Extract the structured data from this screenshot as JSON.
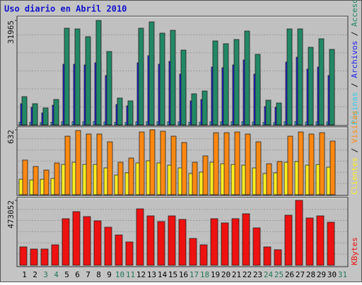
{
  "chart_data": [
    {
      "type": "bar",
      "title": "Uso diario en Abril 2010",
      "categories": [
        "1",
        "2",
        "3",
        "4",
        "5",
        "6",
        "7",
        "8",
        "9",
        "10",
        "11",
        "12",
        "13",
        "14",
        "15",
        "16",
        "17",
        "18",
        "19",
        "20",
        "21",
        "22",
        "23",
        "24",
        "25",
        "26",
        "27",
        "28",
        "29",
        "30",
        "31"
      ],
      "category_colors": [
        "#000000",
        "#000000",
        "#227755",
        "#227755",
        "#000000",
        "#000000",
        "#000000",
        "#000000",
        "#000000",
        "#227755",
        "#227755",
        "#000000",
        "#000000",
        "#000000",
        "#000000",
        "#000000",
        "#227755",
        "#227755",
        "#000000",
        "#000000",
        "#000000",
        "#000000",
        "#000000",
        "#227755",
        "#227755",
        "#000000",
        "#000000",
        "#000000",
        "#000000",
        "#000000",
        "#227755"
      ],
      "legend_separator": " / ",
      "series": [
        {
          "name": "Páginas",
          "color": "#33CCEE",
          "values": [
            820,
            760,
            700,
            790,
            950,
            980,
            940,
            1010,
            880,
            770,
            740,
            960,
            1000,
            950,
            970,
            890,
            800,
            810,
            930,
            920,
            940,
            960,
            870,
            760,
            730,
            950,
            990,
            900,
            930,
            880,
            0
          ]
        },
        {
          "name": "Archivos",
          "color": "#2020EE",
          "values": [
            6480,
            5400,
            3672,
            6048,
            18576,
            18576,
            18360,
            19008,
            15120,
            6264,
            5832,
            19008,
            21168,
            18576,
            19440,
            15552,
            7344,
            7776,
            17712,
            17496,
            18360,
            19872,
            15552,
            5616,
            5400,
            19224,
            20736,
            17064,
            17712,
            15120,
            0
          ]
        },
        {
          "name": "Accesos",
          "color": "#228866",
          "values": [
            8640,
            6480,
            5184,
            7776,
            29592,
            29376,
            27000,
            31965,
            22464,
            8208,
            7344,
            29592,
            31536,
            28080,
            28944,
            22896,
            9504,
            10368,
            25704,
            24840,
            26136,
            28728,
            21600,
            7560,
            6696,
            29376,
            29376,
            23760,
            26352,
            23112,
            0
          ]
        }
      ],
      "ylim": [
        0,
        31965
      ],
      "yticks": [
        31965
      ],
      "grid": true
    },
    {
      "type": "bar",
      "series": [
        {
          "name": "Clientes",
          "color": "#FFEE22",
          "values": [
            151,
            144,
            151,
            158,
            295,
            316,
            295,
            295,
            261,
            192,
            213,
            309,
            330,
            309,
            288,
            261,
            206,
            220,
            316,
            302,
            295,
            288,
            261,
            206,
            213,
            316,
            323,
            288,
            295,
            268,
            0
          ]
        },
        {
          "name": "Visitas",
          "color": "#FF8811",
          "values": [
            337,
            275,
            240,
            309,
            570,
            625,
            591,
            591,
            515,
            316,
            357,
            611,
            632,
            618,
            570,
            508,
            316,
            378,
            604,
            604,
            611,
            591,
            515,
            302,
            323,
            570,
            611,
            591,
            604,
            522,
            0
          ]
        }
      ],
      "ylim": [
        0,
        632
      ],
      "yticks": [
        632
      ],
      "grid": true
    },
    {
      "type": "bar",
      "series": [
        {
          "name": "KBytes",
          "color": "#EE1111",
          "values": [
            133692,
            118266,
            118266,
            149118,
            339372,
            390792,
            354798,
            323946,
            277668,
            221106,
            169686,
            411360,
            359940,
            318804,
            359940,
            334230,
            195396,
            149118,
            339372,
            308520,
            339372,
            375366,
            272526,
            133692,
            113124,
            365082,
            473052,
            344514,
            359940,
            313662,
            0
          ]
        }
      ],
      "ylim": [
        0,
        473052
      ],
      "yticks": [
        473052
      ],
      "grid": true
    }
  ]
}
